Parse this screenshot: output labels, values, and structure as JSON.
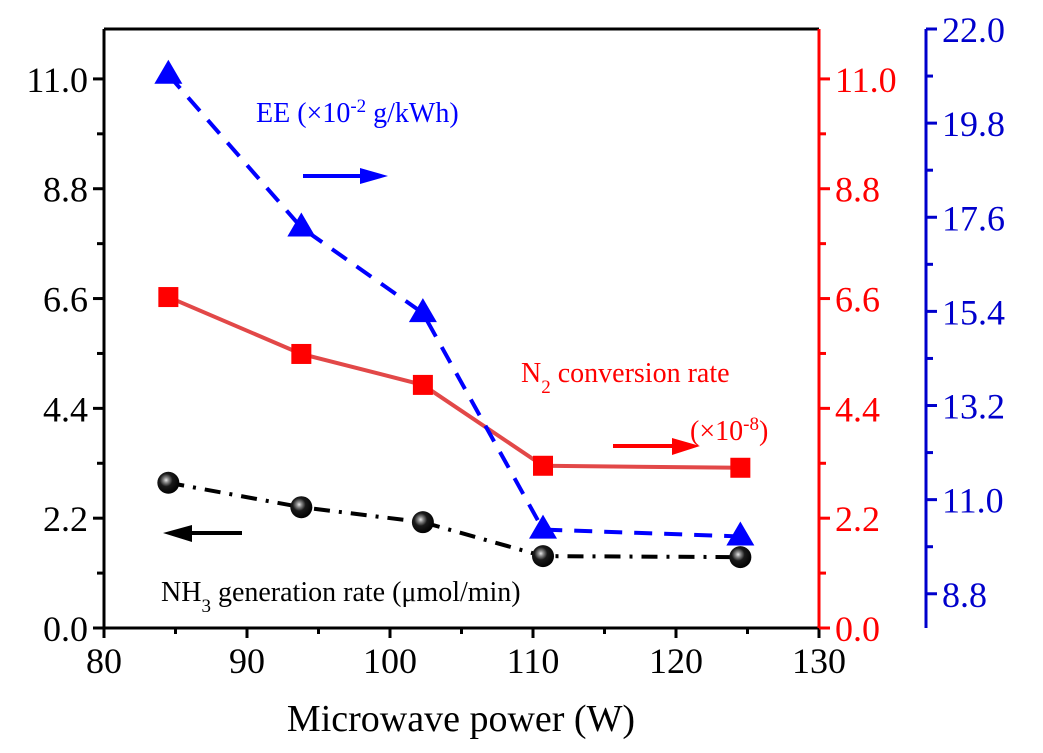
{
  "chart_data": {
    "type": "line",
    "title": "",
    "xlabel": "Microwave power (W)",
    "xlim": [
      80,
      130
    ],
    "x_ticks": [
      "80",
      "90",
      "100",
      "110",
      "120",
      "130"
    ],
    "x_tick_values": [
      80,
      90,
      100,
      110,
      120,
      130
    ],
    "x_minor_step": 5,
    "x": [
      84.5,
      93.8,
      102.3,
      110.7,
      124.5
    ],
    "axes": {
      "left": {
        "color": "#000000",
        "ylim": [
          0,
          12.0
        ],
        "ticks": [
          "0.0",
          "2.2",
          "4.4",
          "6.6",
          "8.8",
          "11.0"
        ],
        "tick_values": [
          0.0,
          2.2,
          4.4,
          6.6,
          8.8,
          11.0
        ],
        "minor_step": 1.1
      },
      "right_red": {
        "color": "#ff0000",
        "ylim": [
          0,
          12.0
        ],
        "ticks": [
          "0.0",
          "2.2",
          "4.4",
          "6.6",
          "8.8",
          "11.0"
        ],
        "tick_values": [
          0.0,
          2.2,
          4.4,
          6.6,
          8.8,
          11.0
        ],
        "minor_step": 1.1
      },
      "right_blue": {
        "color": "#0000cc",
        "ylim": [
          8.0,
          22.0
        ],
        "ticks": [
          "8.8",
          "11.0",
          "13.2",
          "15.4",
          "17.6",
          "19.8",
          "22.0"
        ],
        "tick_values": [
          8.8,
          11.0,
          13.2,
          15.4,
          17.6,
          19.8,
          22.0
        ],
        "minor_step": 1.1
      }
    },
    "series": [
      {
        "name": "NH3 generation rate (μmol/min)",
        "axis": "left",
        "values": [
          2.91,
          2.42,
          2.12,
          1.44,
          1.42
        ],
        "color": "#000000",
        "line_style": "dash-dot",
        "marker": "sphere"
      },
      {
        "name": "N2 conversion rate (×10^-8)",
        "axis": "right_red",
        "values": [
          6.63,
          5.49,
          4.87,
          3.25,
          3.21
        ],
        "color": "#ff0000",
        "line_color": "#e24848",
        "line_style": "solid",
        "marker": "square"
      },
      {
        "name": "EE (×10^-2 g/kWh)",
        "axis": "right_blue",
        "values": [
          20.93,
          17.36,
          15.36,
          10.3,
          10.14
        ],
        "color": "#0000ff",
        "line_style": "dashed",
        "marker": "triangle"
      }
    ],
    "annotations": {
      "ee": {
        "prefix": "EE (×10",
        "sup": "-2",
        "suffix": " g/kWh)",
        "arrow": "right",
        "color": "#0000ff"
      },
      "n2_line1": {
        "prefix": "N",
        "sub": "2",
        "suffix": " conversion rate",
        "color": "#ff0000"
      },
      "n2_line2": {
        "prefix": "(×10",
        "sup": "-8",
        "suffix": ")",
        "arrow": "right",
        "color": "#ff0000"
      },
      "nh3": {
        "prefix": "NH",
        "sub": "3",
        "suffix": " generation rate (μmol/min)",
        "arrow": "left",
        "color": "#000000"
      }
    },
    "legend": "none",
    "grid": false
  }
}
